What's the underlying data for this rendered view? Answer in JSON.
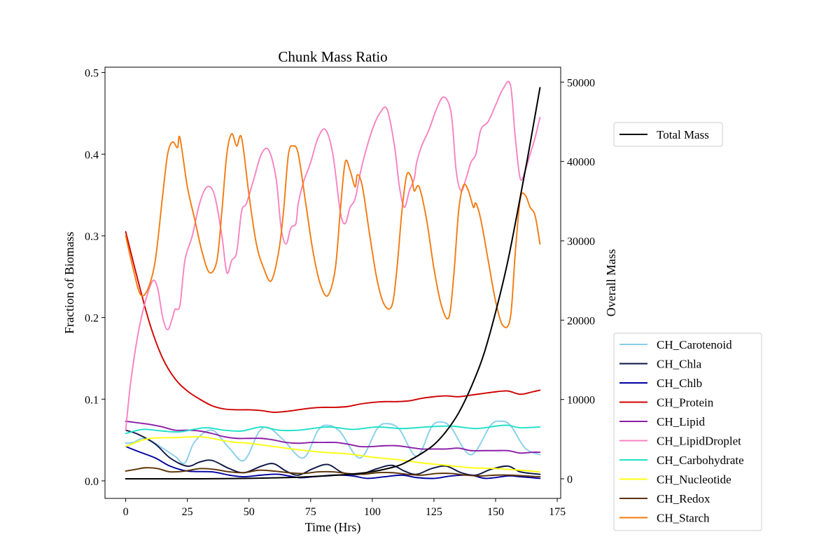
{
  "chart_data": {
    "type": "line",
    "title": "Chunk Mass Ratio",
    "xlabel": "Time (Hrs)",
    "ylabel": "Fraction of Biomass",
    "y2label": "Overall Mass",
    "xlim": [
      -8.4,
      176.4
    ],
    "ylim": [
      -0.0215,
      0.5065
    ],
    "y2lim": [
      -2470,
      51880
    ],
    "x_ticks": [
      0,
      25,
      50,
      75,
      100,
      125,
      150,
      175
    ],
    "y_ticks": [
      0.0,
      0.1,
      0.2,
      0.3,
      0.4,
      0.5
    ],
    "y2_ticks": [
      0,
      10000,
      20000,
      30000,
      40000,
      50000
    ],
    "x_tick_labels": [
      "0",
      "25",
      "50",
      "75",
      "100",
      "125",
      "150",
      "175"
    ],
    "y_tick_labels": [
      "0.0",
      "0.1",
      "0.2",
      "0.3",
      "0.4",
      "0.5"
    ],
    "y2_tick_labels": [
      "0",
      "10000",
      "20000",
      "30000",
      "40000",
      "50000"
    ],
    "grid": false,
    "legend_right_axis": "upper right outside",
    "legend_left_axis": "lower right outside",
    "right_axis_series": [
      {
        "name": "Total Mass",
        "color": "#000000",
        "x": [
          0,
          10,
          20,
          30,
          40,
          50,
          60,
          70,
          80,
          90,
          100,
          110,
          115,
          120,
          125,
          130,
          135,
          140,
          145,
          150,
          155,
          160,
          163,
          165,
          168
        ],
        "y": [
          0,
          0,
          0,
          0,
          20,
          60,
          120,
          200,
          350,
          550,
          900,
          1600,
          2300,
          3200,
          4300,
          6000,
          8300,
          11500,
          15500,
          21000,
          27500,
          35500,
          40500,
          44000,
          49300
        ]
      }
    ],
    "series": [
      {
        "name": "CH_Carotenoid",
        "color": "#87ceeb",
        "x": [
          0,
          3,
          8,
          15,
          20,
          24,
          28,
          35,
          42,
          48,
          54,
          58,
          64,
          72,
          78,
          82,
          87,
          95,
          102,
          106,
          111,
          118,
          124,
          128,
          132,
          140,
          148,
          152,
          156,
          162,
          168
        ],
        "y": [
          0.046,
          0.047,
          0.052,
          0.04,
          0.03,
          0.022,
          0.048,
          0.062,
          0.04,
          0.025,
          0.06,
          0.065,
          0.05,
          0.028,
          0.062,
          0.068,
          0.06,
          0.028,
          0.064,
          0.07,
          0.063,
          0.03,
          0.066,
          0.072,
          0.065,
          0.032,
          0.068,
          0.073,
          0.068,
          0.04,
          0.032
        ]
      },
      {
        "name": "CH_Chla",
        "color": "#0c1545",
        "x": [
          0,
          5,
          12,
          18,
          25,
          30,
          35,
          42,
          48,
          55,
          60,
          65,
          70,
          76,
          82,
          88,
          95,
          102,
          108,
          113,
          118,
          124,
          130,
          136,
          142,
          148,
          155,
          160,
          168
        ],
        "y": [
          0.062,
          0.057,
          0.045,
          0.028,
          0.018,
          0.023,
          0.025,
          0.015,
          0.01,
          0.018,
          0.021,
          0.012,
          0.007,
          0.015,
          0.02,
          0.01,
          0.008,
          0.015,
          0.019,
          0.012,
          0.008,
          0.015,
          0.018,
          0.01,
          0.007,
          0.014,
          0.018,
          0.011,
          0.008
        ]
      },
      {
        "name": "CH_Chlb",
        "color": "#0000a0",
        "x": [
          0,
          5,
          12,
          18,
          25,
          35,
          42,
          48,
          55,
          62,
          70,
          76,
          85,
          92,
          98,
          105,
          112,
          118,
          125,
          132,
          140,
          146,
          155,
          160,
          168
        ],
        "y": [
          0.042,
          0.036,
          0.028,
          0.018,
          0.012,
          0.011,
          0.007,
          0.005,
          0.007,
          0.008,
          0.004,
          0.005,
          0.007,
          0.006,
          0.003,
          0.005,
          0.007,
          0.004,
          0.003,
          0.006,
          0.007,
          0.003,
          0.006,
          0.005,
          0.003
        ]
      },
      {
        "name": "CH_Protein",
        "color": "#d00000",
        "x": [
          0,
          5,
          10,
          15,
          20,
          25,
          30,
          35,
          40,
          45,
          50,
          55,
          60,
          65,
          70,
          75,
          80,
          85,
          90,
          95,
          100,
          105,
          110,
          115,
          120,
          125,
          130,
          135,
          140,
          145,
          150,
          155,
          160,
          165,
          168
        ],
        "y": [
          0.305,
          0.245,
          0.19,
          0.15,
          0.125,
          0.11,
          0.1,
          0.092,
          0.088,
          0.087,
          0.087,
          0.086,
          0.084,
          0.085,
          0.087,
          0.089,
          0.09,
          0.09,
          0.091,
          0.094,
          0.096,
          0.097,
          0.097,
          0.098,
          0.101,
          0.103,
          0.104,
          0.103,
          0.105,
          0.107,
          0.109,
          0.11,
          0.106,
          0.109,
          0.111
        ]
      },
      {
        "name": "CH_Lipid",
        "color": "#8b1ea8",
        "x": [
          0,
          5,
          10,
          15,
          20,
          25,
          30,
          35,
          40,
          45,
          50,
          55,
          60,
          65,
          70,
          75,
          80,
          85,
          90,
          95,
          100,
          105,
          110,
          115,
          120,
          125,
          130,
          135,
          140,
          145,
          150,
          155,
          160,
          165,
          168
        ],
        "y": [
          0.073,
          0.071,
          0.069,
          0.066,
          0.062,
          0.062,
          0.061,
          0.058,
          0.054,
          0.052,
          0.052,
          0.052,
          0.05,
          0.047,
          0.046,
          0.047,
          0.047,
          0.047,
          0.045,
          0.042,
          0.042,
          0.043,
          0.043,
          0.041,
          0.039,
          0.039,
          0.039,
          0.04,
          0.037,
          0.037,
          0.037,
          0.037,
          0.034,
          0.035,
          0.035
        ]
      },
      {
        "name": "CH_LipidDroplet",
        "color": "#f882c1",
        "x": [
          0,
          2,
          5,
          8,
          11,
          13,
          15,
          17,
          19,
          20,
          22,
          24,
          27,
          30,
          33,
          36,
          39,
          41,
          43,
          45,
          47,
          49,
          52,
          55,
          58,
          61,
          63,
          65,
          67,
          69,
          70,
          72,
          75,
          78,
          81,
          84,
          87,
          89,
          91,
          93,
          95,
          97,
          100,
          103,
          106,
          109,
          111,
          113,
          115,
          117,
          118,
          120,
          123,
          126,
          129,
          132,
          134,
          136,
          138,
          140,
          142,
          144,
          147,
          150,
          153,
          156,
          158,
          160,
          162,
          164,
          166,
          168
        ],
        "y": [
          0.062,
          0.12,
          0.18,
          0.22,
          0.245,
          0.235,
          0.2,
          0.185,
          0.2,
          0.21,
          0.215,
          0.27,
          0.3,
          0.34,
          0.36,
          0.35,
          0.3,
          0.255,
          0.27,
          0.28,
          0.33,
          0.34,
          0.37,
          0.4,
          0.405,
          0.37,
          0.31,
          0.29,
          0.31,
          0.315,
          0.34,
          0.365,
          0.39,
          0.42,
          0.43,
          0.4,
          0.33,
          0.315,
          0.335,
          0.345,
          0.375,
          0.4,
          0.43,
          0.45,
          0.455,
          0.41,
          0.36,
          0.335,
          0.355,
          0.37,
          0.39,
          0.41,
          0.43,
          0.455,
          0.47,
          0.45,
          0.38,
          0.355,
          0.37,
          0.39,
          0.4,
          0.43,
          0.44,
          0.46,
          0.48,
          0.485,
          0.42,
          0.37,
          0.38,
          0.4,
          0.42,
          0.445
        ]
      },
      {
        "name": "CH_Carbohydrate",
        "color": "#1ee0c8",
        "x": [
          0,
          7,
          15,
          22,
          32,
          40,
          47,
          55,
          62,
          70,
          82,
          92,
          102,
          112,
          122,
          132,
          142,
          150,
          155,
          160,
          168
        ],
        "y": [
          0.058,
          0.063,
          0.061,
          0.06,
          0.065,
          0.062,
          0.061,
          0.066,
          0.062,
          0.062,
          0.066,
          0.063,
          0.066,
          0.064,
          0.066,
          0.067,
          0.064,
          0.067,
          0.068,
          0.065,
          0.066
        ]
      },
      {
        "name": "CH_Nucleotide",
        "color": "#ffff10",
        "x": [
          0,
          5,
          10,
          20,
          30,
          35,
          40,
          45,
          50,
          60,
          70,
          80,
          90,
          100,
          110,
          120,
          130,
          140,
          150,
          160,
          168
        ],
        "y": [
          0.042,
          0.048,
          0.052,
          0.053,
          0.054,
          0.052,
          0.049,
          0.047,
          0.046,
          0.042,
          0.038,
          0.035,
          0.033,
          0.029,
          0.026,
          0.022,
          0.019,
          0.016,
          0.015,
          0.013,
          0.011
        ]
      },
      {
        "name": "CH_Redox",
        "color": "#5c3206",
        "x": [
          0,
          4,
          8,
          13,
          18,
          24,
          30,
          36,
          42,
          48,
          54,
          60,
          66,
          72,
          78,
          84,
          90,
          96,
          102,
          108,
          114,
          120,
          126,
          132,
          138,
          144,
          150,
          156,
          162,
          168
        ],
        "y": [
          0.012,
          0.014,
          0.016,
          0.015,
          0.011,
          0.012,
          0.015,
          0.014,
          0.011,
          0.01,
          0.013,
          0.012,
          0.01,
          0.009,
          0.011,
          0.011,
          0.009,
          0.008,
          0.01,
          0.01,
          0.008,
          0.007,
          0.009,
          0.009,
          0.007,
          0.006,
          0.007,
          0.007,
          0.006,
          0.005
        ]
      },
      {
        "name": "CH_Starch",
        "color": "#f47a10",
        "x": [
          0,
          3,
          6,
          9,
          12,
          15,
          17,
          19,
          21,
          22,
          25,
          28,
          31,
          34,
          37,
          39,
          41,
          43,
          45,
          47,
          50,
          53,
          56,
          59,
          62,
          64,
          66,
          68,
          70,
          73,
          76,
          79,
          82,
          85,
          87,
          89,
          91,
          93,
          94,
          96,
          99,
          102,
          105,
          108,
          110,
          112,
          114,
          116,
          117,
          119,
          122,
          125,
          128,
          131,
          133,
          135,
          137,
          139,
          141,
          142,
          144,
          147,
          150,
          153,
          156,
          158,
          160,
          162,
          164,
          166,
          168
        ],
        "y": [
          0.3,
          0.26,
          0.228,
          0.235,
          0.27,
          0.35,
          0.4,
          0.415,
          0.408,
          0.42,
          0.36,
          0.32,
          0.28,
          0.255,
          0.27,
          0.33,
          0.4,
          0.425,
          0.41,
          0.42,
          0.35,
          0.29,
          0.26,
          0.245,
          0.28,
          0.33,
          0.4,
          0.41,
          0.4,
          0.34,
          0.28,
          0.24,
          0.227,
          0.26,
          0.33,
          0.39,
          0.38,
          0.36,
          0.375,
          0.36,
          0.3,
          0.245,
          0.215,
          0.215,
          0.26,
          0.33,
          0.375,
          0.37,
          0.355,
          0.36,
          0.32,
          0.26,
          0.215,
          0.2,
          0.25,
          0.33,
          0.362,
          0.355,
          0.335,
          0.34,
          0.32,
          0.27,
          0.22,
          0.19,
          0.2,
          0.28,
          0.345,
          0.35,
          0.335,
          0.325,
          0.29
        ]
      }
    ]
  }
}
